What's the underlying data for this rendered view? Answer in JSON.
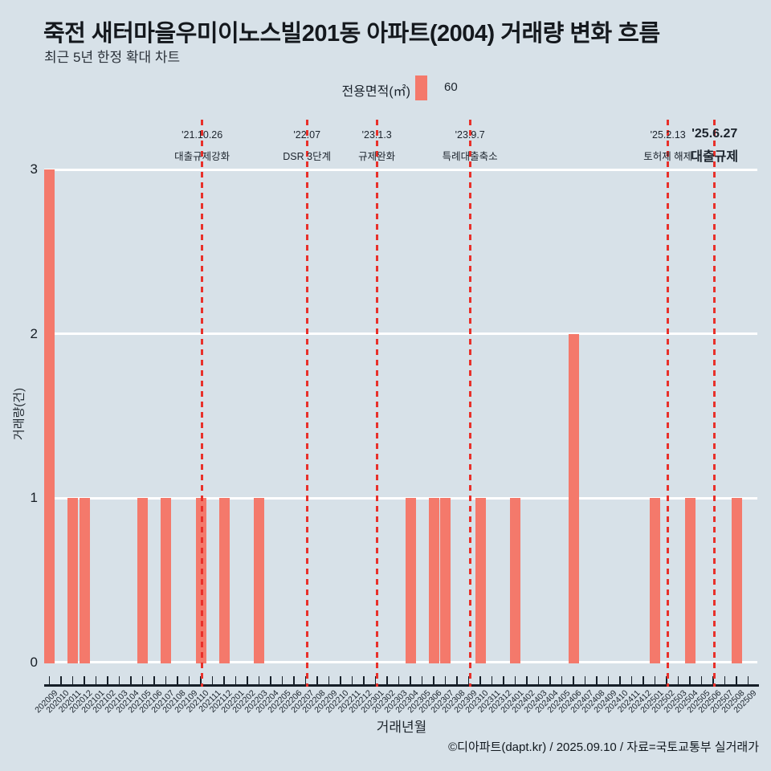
{
  "header": {
    "title": "죽전 새터마을우미이노스빌201동 아파트(2004) 거래량 변화 흐름",
    "subtitle": "최근 5년 한정 확대 차트"
  },
  "legend": {
    "label": "전용면적(㎡)",
    "series_name": "60",
    "swatch_color": "#f4796b"
  },
  "footer": {
    "credit": "©디아파트(dapt.kr) / 2025.09.10 / 자료=국토교통부 실거래가"
  },
  "colors": {
    "background": "#d7e1e8",
    "bar": "#f4796b",
    "event_line": "#e8302a",
    "gridline": "#ffffff",
    "axis": "#161f28"
  },
  "chart_data": {
    "type": "bar",
    "title": "죽전 새터마을우미이노스빌201동 아파트(2004) 거래량 변화 흐름",
    "subtitle": "최근 5년 한정 확대 차트",
    "xlabel": "거래년월",
    "ylabel": "거래량(건)",
    "ylim": [
      0,
      3
    ],
    "yticks": [
      0,
      1,
      2,
      3
    ],
    "grid": "horizontal-white",
    "legend_position": "top-center",
    "series_name": "60",
    "categories": [
      "202009",
      "202010",
      "202011",
      "202012",
      "202101",
      "202102",
      "202103",
      "202104",
      "202105",
      "202106",
      "202107",
      "202108",
      "202109",
      "202110",
      "202111",
      "202112",
      "202201",
      "202202",
      "202203",
      "202204",
      "202205",
      "202206",
      "202207",
      "202208",
      "202209",
      "202210",
      "202211",
      "202212",
      "202301",
      "202302",
      "202303",
      "202304",
      "202305",
      "202306",
      "202307",
      "202308",
      "202309",
      "202310",
      "202311",
      "202312",
      "202401",
      "202402",
      "202403",
      "202404",
      "202405",
      "202406",
      "202407",
      "202408",
      "202409",
      "202410",
      "202411",
      "202412",
      "202501",
      "202502",
      "202503",
      "202504",
      "202505",
      "202506",
      "202507",
      "202508",
      "202509"
    ],
    "values": [
      3,
      0,
      1,
      1,
      0,
      0,
      0,
      0,
      1,
      0,
      1,
      0,
      0,
      1,
      0,
      1,
      0,
      0,
      1,
      0,
      0,
      0,
      0,
      0,
      0,
      0,
      0,
      0,
      0,
      0,
      0,
      1,
      0,
      1,
      1,
      0,
      0,
      1,
      0,
      0,
      1,
      0,
      0,
      0,
      0,
      2,
      0,
      0,
      0,
      0,
      0,
      0,
      1,
      0,
      0,
      1,
      0,
      0,
      0,
      1,
      0
    ],
    "annotations": [
      {
        "date": "'21.10.26",
        "label": "대출규제강화",
        "month": "202110",
        "emphasis": false
      },
      {
        "date": "'22.07",
        "label": "DSR 3단계",
        "month": "202207",
        "emphasis": false
      },
      {
        "date": "'23.1.3",
        "label": "규제완화",
        "month": "202301",
        "emphasis": false
      },
      {
        "date": "'23.9.7",
        "label": "특례대출축소",
        "month": "202309",
        "emphasis": false
      },
      {
        "date": "'25.2.13",
        "label": "토허제 해제",
        "month": "202502",
        "emphasis": false
      },
      {
        "date": "'25.6.27",
        "label": "대출규제",
        "month": "202506",
        "emphasis": true
      }
    ]
  }
}
